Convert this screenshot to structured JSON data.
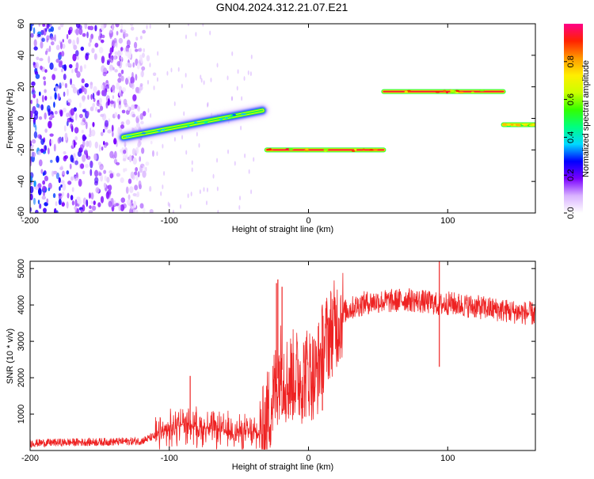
{
  "page_title": "GN04.2024.312.21.07.E21",
  "chart_data": [
    {
      "type": "heatmap",
      "title": "",
      "xlabel": "Height of straight line (km)",
      "ylabel": "Frequency (Hz)",
      "xlim": [
        -200,
        163
      ],
      "ylim": [
        -60,
        60
      ],
      "x_ticks": [
        "-200",
        "-100",
        "0",
        "100"
      ],
      "y_ticks": [
        "60",
        "40",
        "20",
        "0",
        "-20",
        "-40",
        "-60"
      ],
      "colorbar": {
        "label": "Normalized spectral amplitude",
        "range": [
          0.0,
          1.0
        ],
        "ticks": [
          "0.0",
          "0.2",
          "0.4",
          "0.6",
          "0.8"
        ],
        "colormap": [
          "#ffffff",
          "#d9b3ff",
          "#7a00ff",
          "#0000ff",
          "#00d9ff",
          "#00ff80",
          "#33ff00",
          "#ccff00",
          "#ffee00",
          "#ff9900",
          "#ff2200",
          "#ff0088"
        ]
      },
      "segments": [
        {
          "x_start": -133,
          "x_end": -33,
          "freq_start": -12,
          "freq_end": 5,
          "amplitude": 0.5
        },
        {
          "x_start": -30,
          "x_end": 54,
          "freq_start": -20,
          "freq_end": -20,
          "amplitude": 0.95
        },
        {
          "x_start": 54,
          "x_end": 140,
          "freq_start": 17,
          "freq_end": 17,
          "amplitude": 0.95
        },
        {
          "x_start": 140,
          "x_end": 163,
          "freq_start": -4,
          "freq_end": -4,
          "amplitude": 0.8
        }
      ],
      "noise_region": {
        "x_start": -200,
        "x_end": -118,
        "amplitude": 0.25
      }
    },
    {
      "type": "line",
      "title": "",
      "xlabel": "Height of straight line (km)",
      "ylabel": "SNR (10 * v/v)",
      "xlim": [
        -200,
        163
      ],
      "ylim": [
        0,
        5200
      ],
      "x_ticks": [
        "-200",
        "-100",
        "0",
        "100"
      ],
      "y_ticks": [
        "5000",
        "4000",
        "3000",
        "2000",
        "1000"
      ],
      "series": [
        {
          "color": "#ee2222",
          "x": [
            -200,
            -180,
            -160,
            -140,
            -120,
            -110,
            -100,
            -90,
            -80,
            -70,
            -60,
            -50,
            -40,
            -33,
            -30,
            -25,
            -20,
            -15,
            -10,
            -5,
            0,
            5,
            10,
            15,
            20,
            25,
            30,
            40,
            50,
            60,
            70,
            80,
            90,
            94,
            100,
            110,
            120,
            130,
            140,
            150,
            163
          ],
          "y": [
            200,
            220,
            230,
            240,
            260,
            400,
            550,
            750,
            650,
            600,
            520,
            500,
            480,
            450,
            900,
            1500,
            2300,
            1900,
            2100,
            2000,
            2200,
            2000,
            2800,
            3200,
            3500,
            3800,
            3900,
            4050,
            4100,
            4100,
            4150,
            4100,
            4050,
            4000,
            4050,
            4000,
            3950,
            3900,
            3850,
            3800,
            3750
          ]
        }
      ],
      "spikes": [
        {
          "x": -23,
          "y": 4600
        },
        {
          "x": -19,
          "y": 4500
        },
        {
          "x": -22,
          "y": 4700
        },
        {
          "x": -85,
          "y": 2050
        },
        {
          "x": 94,
          "y": 5200
        },
        {
          "x": 94,
          "y": 2300
        },
        {
          "x": 10,
          "y": 1100
        }
      ]
    }
  ]
}
